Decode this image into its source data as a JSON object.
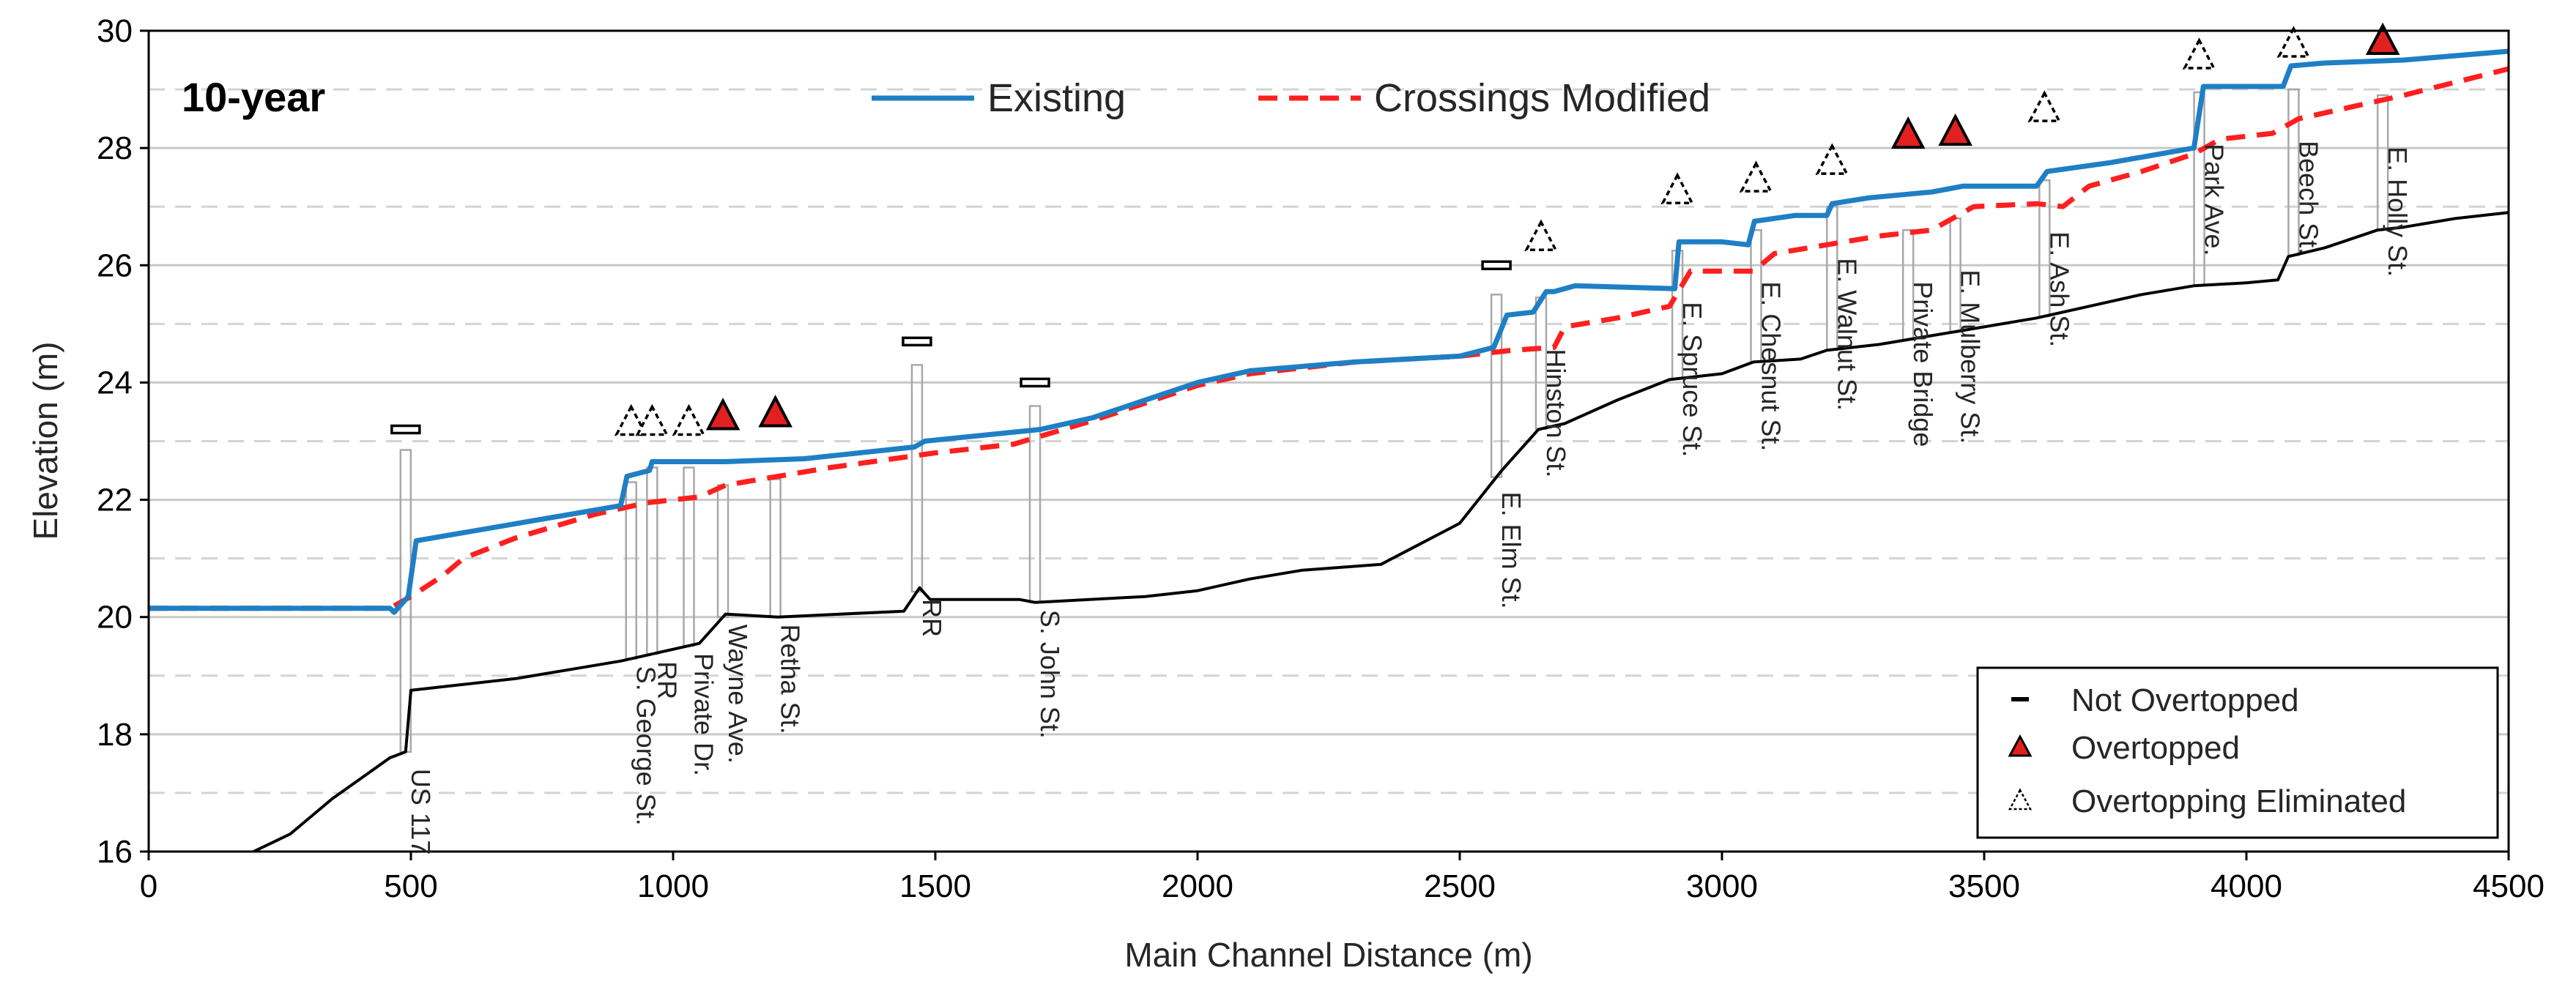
{
  "chart_data": {
    "type": "line",
    "title": "10-year",
    "xlabel": "Main Channel Distance (m)",
    "ylabel": "Elevation (m)",
    "xlim": [
      0,
      4500
    ],
    "ylim": [
      16,
      30
    ],
    "xticks": [
      "0",
      "500",
      "1000",
      "1500",
      "2000",
      "2500",
      "3000",
      "3500",
      "4000",
      "4500"
    ],
    "yticks": [
      "16",
      "18",
      "20",
      "22",
      "24",
      "26",
      "28",
      "30"
    ],
    "grid": "horizontal dashed",
    "series": [
      {
        "name": "Existing",
        "color": "#1f7fc4",
        "style": "solid",
        "points": [
          [
            0,
            20.15
          ],
          [
            460,
            20.15
          ],
          [
            468,
            20.08
          ],
          [
            495,
            20.35
          ],
          [
            510,
            21.3
          ],
          [
            900,
            21.9
          ],
          [
            912,
            22.4
          ],
          [
            955,
            22.5
          ],
          [
            960,
            22.65
          ],
          [
            1100,
            22.65
          ],
          [
            1250,
            22.7
          ],
          [
            1460,
            22.9
          ],
          [
            1480,
            23.0
          ],
          [
            1700,
            23.2
          ],
          [
            1800,
            23.4
          ],
          [
            1900,
            23.7
          ],
          [
            2000,
            24.0
          ],
          [
            2100,
            24.2
          ],
          [
            2300,
            24.35
          ],
          [
            2500,
            24.45
          ],
          [
            2565,
            24.6
          ],
          [
            2590,
            25.15
          ],
          [
            2640,
            25.2
          ],
          [
            2665,
            25.55
          ],
          [
            2680,
            25.55
          ],
          [
            2720,
            25.65
          ],
          [
            2910,
            25.6
          ],
          [
            2918,
            26.4
          ],
          [
            3000,
            26.4
          ],
          [
            3050,
            26.35
          ],
          [
            3062,
            26.75
          ],
          [
            3140,
            26.85
          ],
          [
            3200,
            26.85
          ],
          [
            3210,
            27.05
          ],
          [
            3280,
            27.15
          ],
          [
            3400,
            27.25
          ],
          [
            3460,
            27.35
          ],
          [
            3600,
            27.35
          ],
          [
            3620,
            27.6
          ],
          [
            3660,
            27.65
          ],
          [
            3740,
            27.75
          ],
          [
            3900,
            28.0
          ],
          [
            3918,
            29.05
          ],
          [
            4070,
            29.05
          ],
          [
            4085,
            29.4
          ],
          [
            4150,
            29.45
          ],
          [
            4300,
            29.5
          ],
          [
            4500,
            29.65
          ]
        ]
      },
      {
        "name": "Crossings Modified",
        "color": "#ff1f1f",
        "style": "dashed",
        "points": [
          [
            0,
            20.15
          ],
          [
            460,
            20.15
          ],
          [
            500,
            20.35
          ],
          [
            560,
            20.7
          ],
          [
            600,
            21.0
          ],
          [
            700,
            21.35
          ],
          [
            850,
            21.75
          ],
          [
            900,
            21.85
          ],
          [
            950,
            21.95
          ],
          [
            1050,
            22.05
          ],
          [
            1100,
            22.25
          ],
          [
            1300,
            22.55
          ],
          [
            1500,
            22.8
          ],
          [
            1650,
            22.95
          ],
          [
            1800,
            23.35
          ],
          [
            1900,
            23.65
          ],
          [
            2000,
            23.95
          ],
          [
            2100,
            24.15
          ],
          [
            2300,
            24.35
          ],
          [
            2500,
            24.45
          ],
          [
            2600,
            24.55
          ],
          [
            2680,
            24.6
          ],
          [
            2700,
            24.95
          ],
          [
            2800,
            25.1
          ],
          [
            2900,
            25.3
          ],
          [
            2940,
            25.9
          ],
          [
            3000,
            25.9
          ],
          [
            3060,
            25.9
          ],
          [
            3100,
            26.2
          ],
          [
            3200,
            26.35
          ],
          [
            3300,
            26.5
          ],
          [
            3400,
            26.6
          ],
          [
            3480,
            27.0
          ],
          [
            3600,
            27.05
          ],
          [
            3650,
            27.0
          ],
          [
            3700,
            27.35
          ],
          [
            3800,
            27.6
          ],
          [
            3900,
            27.9
          ],
          [
            3950,
            28.15
          ],
          [
            4050,
            28.25
          ],
          [
            4100,
            28.5
          ],
          [
            4200,
            28.7
          ],
          [
            4300,
            28.9
          ],
          [
            4500,
            29.35
          ]
        ]
      },
      {
        "name": "Channel bed",
        "color": "#000000",
        "style": "solid",
        "points": [
          [
            200,
            16.0
          ],
          [
            270,
            16.3
          ],
          [
            350,
            16.9
          ],
          [
            460,
            17.6
          ],
          [
            490,
            17.7
          ],
          [
            500,
            18.75
          ],
          [
            600,
            18.85
          ],
          [
            700,
            18.95
          ],
          [
            900,
            19.25
          ],
          [
            950,
            19.35
          ],
          [
            1050,
            19.55
          ],
          [
            1100,
            20.05
          ],
          [
            1200,
            20.0
          ],
          [
            1440,
            20.1
          ],
          [
            1470,
            20.5
          ],
          [
            1490,
            20.3
          ],
          [
            1660,
            20.3
          ],
          [
            1690,
            20.25
          ],
          [
            1900,
            20.35
          ],
          [
            2000,
            20.45
          ],
          [
            2100,
            20.65
          ],
          [
            2200,
            20.8
          ],
          [
            2350,
            20.9
          ],
          [
            2500,
            21.6
          ],
          [
            2580,
            22.5
          ],
          [
            2650,
            23.2
          ],
          [
            2700,
            23.3
          ],
          [
            2800,
            23.7
          ],
          [
            2900,
            24.05
          ],
          [
            3000,
            24.15
          ],
          [
            3060,
            24.35
          ],
          [
            3150,
            24.4
          ],
          [
            3200,
            24.55
          ],
          [
            3300,
            24.65
          ],
          [
            3400,
            24.8
          ],
          [
            3500,
            24.95
          ],
          [
            3600,
            25.1
          ],
          [
            3700,
            25.3
          ],
          [
            3800,
            25.5
          ],
          [
            3900,
            25.65
          ],
          [
            4000,
            25.7
          ],
          [
            4060,
            25.75
          ],
          [
            4080,
            26.15
          ],
          [
            4150,
            26.3
          ],
          [
            4250,
            26.6
          ],
          [
            4300,
            26.65
          ],
          [
            4400,
            26.8
          ],
          [
            4500,
            26.9
          ]
        ]
      }
    ],
    "crossings": [
      {
        "name": "US 117",
        "x": 490,
        "status": "Not Overtopped",
        "marker_y": 23.2,
        "top": 22.85
      },
      {
        "name": "S. George St.",
        "x": 920,
        "status": "Overtopping Eliminated",
        "marker_y": 23.35,
        "top": 22.3
      },
      {
        "name": "RR",
        "x": 960,
        "status": "Overtopping Eliminated",
        "marker_y": 23.35,
        "top": 22.55
      },
      {
        "name": "Private Dr.",
        "x": 1030,
        "status": "Overtopping Eliminated",
        "marker_y": 23.35,
        "top": 22.55
      },
      {
        "name": "Wayne Ave.",
        "x": 1095,
        "status": "Overtopped",
        "marker_y": 23.45,
        "top": 22.25
      },
      {
        "name": "Retha St.",
        "x": 1195,
        "status": "Overtopped",
        "marker_y": 23.5,
        "top": 22.35
      },
      {
        "name": "RR",
        "x": 1465,
        "status": "Not Overtopped",
        "marker_y": 24.7,
        "top": 24.3
      },
      {
        "name": "S. John St.",
        "x": 1690,
        "status": "Not Overtopped",
        "marker_y": 24.0,
        "top": 23.6
      },
      {
        "name": "E. Elm St.",
        "x": 2570,
        "status": "Not Overtopped",
        "marker_y": 26.0,
        "top": 25.5
      },
      {
        "name": "Hinston St.",
        "x": 2655,
        "status": "Overtopping Eliminated",
        "marker_y": 26.5,
        "top": 25.45
      },
      {
        "name": "E. Spruce St.",
        "x": 2915,
        "status": "Overtopping Eliminated",
        "marker_y": 27.3,
        "top": 26.25
      },
      {
        "name": "E. Chesnut St.",
        "x": 3065,
        "status": "Overtopping Eliminated",
        "marker_y": 27.5,
        "top": 26.6
      },
      {
        "name": "E. Walnut St.",
        "x": 3210,
        "status": "Overtopping Eliminated",
        "marker_y": 27.8,
        "top": 27.0
      },
      {
        "name": "Private Bridge",
        "x": 3355,
        "status": "Overtopped",
        "marker_y": 28.25,
        "top": 26.6
      },
      {
        "name": "E. Mulberry St.",
        "x": 3445,
        "status": "Overtopped",
        "marker_y": 28.3,
        "top": 26.8
      },
      {
        "name": "E. Ash St.",
        "x": 3615,
        "status": "Overtopping Eliminated",
        "marker_y": 28.7,
        "top": 27.45
      },
      {
        "name": "Park Ave.",
        "x": 3910,
        "status": "Overtopping Eliminated",
        "marker_y": 29.6,
        "top": 28.95
      },
      {
        "name": "Beech St.",
        "x": 4090,
        "status": "Overtopping Eliminated",
        "marker_y": 29.8,
        "top": 29.0
      },
      {
        "name": "E. Holly St.",
        "x": 4260,
        "status": "Overtopped",
        "marker_y": 29.85,
        "top": 28.9
      }
    ],
    "legend_lines": {
      "position": "top-center",
      "entries": [
        {
          "label": "Existing",
          "color": "#1f7fc4",
          "style": "solid"
        },
        {
          "label": "Crossings Modified",
          "color": "#ff1f1f",
          "style": "dashed"
        }
      ]
    },
    "legend_markers": {
      "position": "bottom-right",
      "entries": [
        {
          "label": "Not Overtopped",
          "symbol": "dash"
        },
        {
          "label": "Overtopped",
          "symbol": "filled-triangle",
          "color": "#e32020"
        },
        {
          "label": "Overtopping Eliminated",
          "symbol": "open-dashed-triangle"
        }
      ]
    }
  }
}
